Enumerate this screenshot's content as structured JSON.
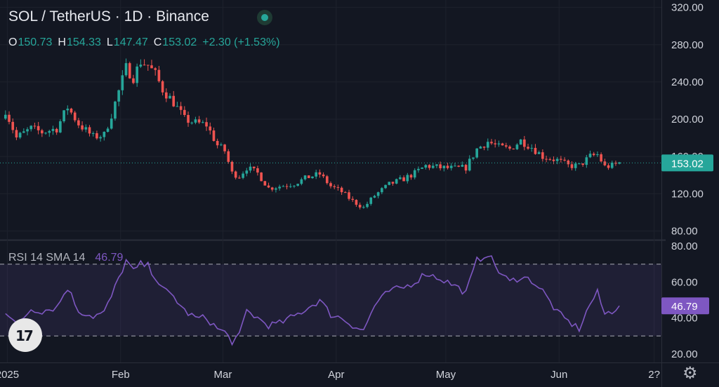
{
  "header": {
    "symbol": "SOL / TetherUS · 1D · Binance",
    "ohlc": [
      {
        "key": "O",
        "value": "150.73"
      },
      {
        "key": "H",
        "value": "154.33"
      },
      {
        "key": "L",
        "value": "147.47"
      },
      {
        "key": "C",
        "value": "153.02"
      }
    ],
    "change": "+2.30 (+1.53%)"
  },
  "rsi_header": {
    "label": "RSI 14 SMA 14",
    "value": "46.79"
  },
  "logo": {
    "text": "17"
  },
  "colors": {
    "up": "#26a69a",
    "down": "#ef5350",
    "rsi": "#7e57c2",
    "bg": "#131722"
  },
  "icons": {
    "live": "live-dot-icon",
    "settings": "gear-icon"
  },
  "chart_data": [
    {
      "type": "candlestick",
      "title": "SOL / TetherUS · 1D · Binance",
      "x_ticks": [
        "2025",
        "Feb",
        "Mar",
        "Apr",
        "May",
        "Jun",
        "2?"
      ],
      "y_ticks": [
        80,
        120,
        160,
        200,
        240,
        280,
        320
      ],
      "ylim": [
        72,
        322
      ],
      "last_price": 153.02,
      "close_path": [
        [
          "2024-12-31",
          210
        ],
        [
          "2025-01-03",
          180
        ],
        [
          "2025-01-07",
          190
        ],
        [
          "2025-01-10",
          186
        ],
        [
          "2025-01-14",
          190
        ],
        [
          "2025-01-17",
          213
        ],
        [
          "2025-01-20",
          195
        ],
        [
          "2025-01-24",
          181
        ],
        [
          "2025-01-27",
          183
        ],
        [
          "2025-01-29",
          205
        ],
        [
          "2025-01-31",
          230
        ],
        [
          "2025-02-02",
          255
        ],
        [
          "2025-02-04",
          245
        ],
        [
          "2025-02-06",
          262
        ],
        [
          "2025-02-08",
          258
        ],
        [
          "2025-02-10",
          248
        ],
        [
          "2025-02-12",
          232
        ],
        [
          "2025-02-15",
          218
        ],
        [
          "2025-02-18",
          200
        ],
        [
          "2025-02-21",
          196
        ],
        [
          "2025-02-24",
          194
        ],
        [
          "2025-02-27",
          172
        ],
        [
          "2025-03-01",
          166
        ],
        [
          "2025-03-03",
          142
        ],
        [
          "2025-03-05",
          139
        ],
        [
          "2025-03-07",
          148
        ],
        [
          "2025-03-10",
          142
        ],
        [
          "2025-03-13",
          126
        ],
        [
          "2025-03-16",
          128
        ],
        [
          "2025-03-20",
          131
        ],
        [
          "2025-03-24",
          138
        ],
        [
          "2025-03-27",
          141
        ],
        [
          "2025-03-30",
          128
        ],
        [
          "2025-04-02",
          122
        ],
        [
          "2025-04-05",
          112
        ],
        [
          "2025-04-08",
          105
        ],
        [
          "2025-04-11",
          118
        ],
        [
          "2025-04-15",
          130
        ],
        [
          "2025-04-19",
          136
        ],
        [
          "2025-04-22",
          142
        ],
        [
          "2025-04-25",
          150
        ],
        [
          "2025-04-29",
          148
        ],
        [
          "2025-05-03",
          147
        ],
        [
          "2025-05-06",
          148
        ],
        [
          "2025-05-09",
          168
        ],
        [
          "2025-05-12",
          176
        ],
        [
          "2025-05-15",
          170
        ],
        [
          "2025-05-18",
          168
        ],
        [
          "2025-05-21",
          177
        ],
        [
          "2025-05-24",
          170
        ],
        [
          "2025-05-27",
          160
        ],
        [
          "2025-05-31",
          156
        ],
        [
          "2025-06-03",
          150
        ],
        [
          "2025-06-06",
          150
        ],
        [
          "2025-06-09",
          160
        ],
        [
          "2025-06-11",
          162
        ],
        [
          "2025-06-13",
          149
        ],
        [
          "2025-06-15",
          150
        ],
        [
          "2025-06-17",
          153.02
        ]
      ]
    },
    {
      "type": "line",
      "title": "RSI 14 SMA 14",
      "y_ticks": [
        20,
        40,
        60,
        80
      ],
      "ylim": [
        18,
        82
      ],
      "bands": [
        30,
        70
      ],
      "last_value": 46.79,
      "series": [
        {
          "values": [
            [
              "2024-12-31",
              44
            ],
            [
              "2025-01-03",
              36
            ],
            [
              "2025-01-07",
              45
            ],
            [
              "2025-01-10",
              44
            ],
            [
              "2025-01-14",
              46
            ],
            [
              "2025-01-17",
              57
            ],
            [
              "2025-01-20",
              44
            ],
            [
              "2025-01-24",
              41
            ],
            [
              "2025-01-27",
              43
            ],
            [
              "2025-01-29",
              52
            ],
            [
              "2025-01-31",
              62
            ],
            [
              "2025-02-02",
              72
            ],
            [
              "2025-02-04",
              66
            ],
            [
              "2025-02-06",
              70
            ],
            [
              "2025-02-08",
              69
            ],
            [
              "2025-02-10",
              63
            ],
            [
              "2025-02-12",
              56
            ],
            [
              "2025-02-15",
              52
            ],
            [
              "2025-02-18",
              44
            ],
            [
              "2025-02-21",
              40
            ],
            [
              "2025-02-24",
              40
            ],
            [
              "2025-02-27",
              34
            ],
            [
              "2025-03-01",
              32
            ],
            [
              "2025-03-03",
              27
            ],
            [
              "2025-03-05",
              30
            ],
            [
              "2025-03-07",
              44
            ],
            [
              "2025-03-10",
              40
            ],
            [
              "2025-03-13",
              36
            ],
            [
              "2025-03-16",
              37
            ],
            [
              "2025-03-20",
              41
            ],
            [
              "2025-03-24",
              46
            ],
            [
              "2025-03-27",
              50
            ],
            [
              "2025-03-30",
              42
            ],
            [
              "2025-04-02",
              40
            ],
            [
              "2025-04-05",
              36
            ],
            [
              "2025-04-08",
              33
            ],
            [
              "2025-04-11",
              47
            ],
            [
              "2025-04-15",
              55
            ],
            [
              "2025-04-19",
              57
            ],
            [
              "2025-04-22",
              60
            ],
            [
              "2025-04-25",
              65
            ],
            [
              "2025-04-29",
              62
            ],
            [
              "2025-05-03",
              58
            ],
            [
              "2025-05-06",
              54
            ],
            [
              "2025-05-09",
              72
            ],
            [
              "2025-05-12",
              76
            ],
            [
              "2025-05-15",
              66
            ],
            [
              "2025-05-18",
              60
            ],
            [
              "2025-05-21",
              63
            ],
            [
              "2025-05-24",
              61
            ],
            [
              "2025-05-27",
              55
            ],
            [
              "2025-05-31",
              43
            ],
            [
              "2025-06-03",
              38
            ],
            [
              "2025-06-06",
              34
            ],
            [
              "2025-06-09",
              48
            ],
            [
              "2025-06-11",
              54
            ],
            [
              "2025-06-13",
              42
            ],
            [
              "2025-06-15",
              44
            ],
            [
              "2025-06-17",
              46.79
            ]
          ]
        }
      ]
    }
  ]
}
